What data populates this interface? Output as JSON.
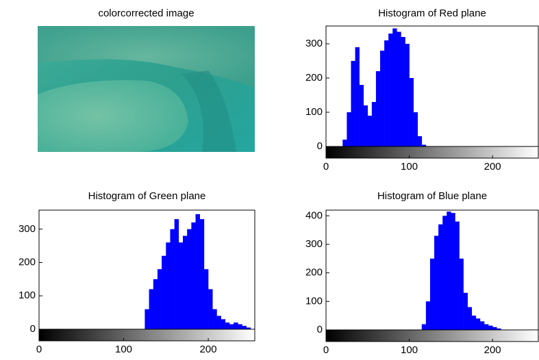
{
  "chart_data": [
    {
      "type": "image",
      "title": "colorcorrected image"
    },
    {
      "type": "histogram",
      "title": "Histogram of Red plane",
      "color": "#0000ff",
      "bins": [
        0,
        5,
        10,
        15,
        20,
        25,
        30,
        35,
        40,
        45,
        50,
        55,
        60,
        65,
        70,
        75,
        80,
        85,
        90,
        95,
        100,
        105,
        110,
        115,
        120,
        125,
        130,
        135,
        140,
        145,
        150,
        155,
        160,
        165,
        170,
        175,
        180,
        185,
        190,
        195,
        200,
        205,
        210,
        215,
        220,
        225,
        230,
        235,
        240,
        245,
        250,
        255
      ],
      "values": [
        0,
        0,
        0,
        0,
        20,
        100,
        250,
        290,
        180,
        120,
        90,
        130,
        220,
        280,
        310,
        330,
        345,
        335,
        320,
        300,
        200,
        100,
        30,
        5,
        0,
        0,
        0,
        0,
        0,
        0,
        0,
        0,
        0,
        0,
        0,
        0,
        0,
        0,
        0,
        0,
        0,
        0,
        0,
        0,
        0,
        0,
        0,
        0,
        0,
        0,
        0
      ],
      "xlim": [
        0,
        255
      ],
      "xticks": [
        0,
        100,
        200
      ],
      "ylim": [
        0,
        352
      ],
      "yticks": [
        0,
        100,
        200,
        300
      ]
    },
    {
      "type": "histogram",
      "title": "Histogram of Green plane",
      "color": "#0000ff",
      "bins": [
        0,
        5,
        10,
        15,
        20,
        25,
        30,
        35,
        40,
        45,
        50,
        55,
        60,
        65,
        70,
        75,
        80,
        85,
        90,
        95,
        100,
        105,
        110,
        115,
        120,
        125,
        130,
        135,
        140,
        145,
        150,
        155,
        160,
        165,
        170,
        175,
        180,
        185,
        190,
        195,
        200,
        205,
        210,
        215,
        220,
        225,
        230,
        235,
        240,
        245,
        250,
        255
      ],
      "values": [
        0,
        0,
        0,
        0,
        0,
        0,
        0,
        0,
        0,
        0,
        0,
        0,
        0,
        0,
        0,
        0,
        0,
        0,
        0,
        0,
        0,
        0,
        0,
        0,
        0,
        60,
        120,
        150,
        180,
        220,
        260,
        300,
        330,
        260,
        280,
        300,
        320,
        345,
        330,
        180,
        120,
        60,
        40,
        30,
        20,
        15,
        20,
        15,
        10,
        5,
        0
      ],
      "xlim": [
        0,
        255
      ],
      "xticks": [
        0,
        100,
        200
      ],
      "ylim": [
        0,
        357
      ],
      "yticks": [
        0,
        100,
        200,
        300
      ]
    },
    {
      "type": "histogram",
      "title": "Histogram of Blue plane",
      "color": "#0000ff",
      "bins": [
        0,
        5,
        10,
        15,
        20,
        25,
        30,
        35,
        40,
        45,
        50,
        55,
        60,
        65,
        70,
        75,
        80,
        85,
        90,
        95,
        100,
        105,
        110,
        115,
        120,
        125,
        130,
        135,
        140,
        145,
        150,
        155,
        160,
        165,
        170,
        175,
        180,
        185,
        190,
        195,
        200,
        205,
        210,
        215,
        220,
        225,
        230,
        235,
        240,
        245,
        250,
        255
      ],
      "values": [
        0,
        0,
        0,
        0,
        0,
        0,
        0,
        0,
        0,
        0,
        0,
        0,
        0,
        0,
        0,
        0,
        0,
        0,
        0,
        0,
        0,
        0,
        0,
        20,
        100,
        250,
        330,
        370,
        400,
        415,
        410,
        380,
        250,
        130,
        80,
        50,
        40,
        30,
        20,
        15,
        10,
        5,
        0,
        0,
        0,
        0,
        0,
        0,
        0,
        0,
        0
      ],
      "xlim": [
        0,
        255
      ],
      "xticks": [
        0,
        100,
        200
      ],
      "ylim": [
        0,
        420
      ],
      "yticks": [
        0,
        100,
        200,
        300,
        400
      ]
    }
  ]
}
